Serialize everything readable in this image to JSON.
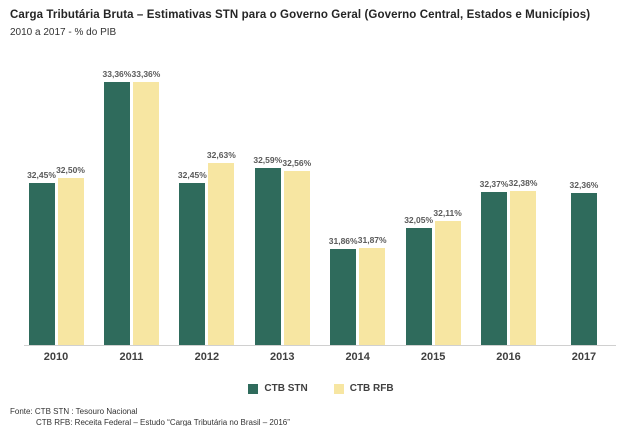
{
  "title": "Carga Tributária Bruta – Estimativas STN para o Governo Geral (Governo Central, Estados e Municípios)",
  "subtitle": "2010 a 2017 - % do PIB",
  "colors": {
    "stn_green": "#2F6B5C",
    "rfb_yellow": "#F7E6A2",
    "label_gray": "#595959",
    "axis_line": "#d0d0d0"
  },
  "legend": [
    {
      "label": "CTB STN",
      "color": "#2F6B5C"
    },
    {
      "label": "CTB RFB",
      "color": "#F7E6A2"
    }
  ],
  "footer": {
    "line1": "Fonte: CTB STN : Tesouro Nacional",
    "line2": "CTB RFB: Receita Federal – Estudo “Carga Tributária no Brasil – 2016”"
  },
  "chart_data": {
    "type": "bar",
    "title": "Carga Tributária Bruta – Estimativas STN para o Governo Geral (Governo Central, Estados e Municípios)",
    "subtitle": "2010 a 2017 - % do PIB",
    "xlabel": "",
    "ylabel": "% do PIB",
    "categories": [
      "2010",
      "2011",
      "2012",
      "2013",
      "2014",
      "2015",
      "2016",
      "2017"
    ],
    "series": [
      {
        "name": "CTB STN",
        "color": "#2F6B5C",
        "values": [
          32.45,
          33.36,
          32.45,
          32.59,
          31.86,
          32.05,
          32.37,
          32.36
        ],
        "labels": [
          "32,45%",
          "33,36%",
          "32,45%",
          "32,59%",
          "31,86%",
          "32,05%",
          "32,37%",
          "32,36%"
        ]
      },
      {
        "name": "CTB RFB",
        "color": "#F7E6A2",
        "values": [
          32.5,
          33.36,
          32.63,
          32.56,
          31.87,
          32.11,
          32.38,
          null
        ],
        "labels": [
          "32,50%",
          "33,36%",
          "32,63%",
          "32,56%",
          "31,87%",
          "32,11%",
          "32,38%",
          ""
        ]
      }
    ],
    "ylim": [
      31.0,
      33.6
    ],
    "grid": false,
    "legend_position": "bottom"
  }
}
